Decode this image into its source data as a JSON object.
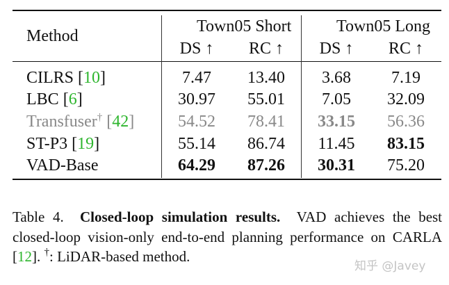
{
  "table": {
    "header": {
      "method": "Method",
      "groups": [
        "Town05 Short",
        "Town05 Long"
      ],
      "columns": [
        "DS ↑",
        "RC ↑",
        "DS ↑",
        "RC ↑"
      ]
    },
    "rows": [
      {
        "method": {
          "name": "CILRS",
          "ref_open": "[",
          "ref": "10",
          "ref_close": "]"
        },
        "cells": [
          "7.47",
          "13.40",
          "3.68",
          "7.19"
        ],
        "bold": [
          false,
          false,
          false,
          false
        ],
        "muted": false
      },
      {
        "method": {
          "name": "LBC",
          "ref_open": "[",
          "ref": "6",
          "ref_close": "]"
        },
        "cells": [
          "30.97",
          "55.01",
          "7.05",
          "32.09"
        ],
        "bold": [
          false,
          false,
          false,
          false
        ],
        "muted": false
      },
      {
        "method": {
          "name": "Transfuser",
          "mark": "†",
          "ref_open": "[",
          "ref": "42",
          "ref_close": "]"
        },
        "cells": [
          "54.52",
          "78.41",
          "33.15",
          "56.36"
        ],
        "bold": [
          false,
          false,
          true,
          false
        ],
        "muted": true
      },
      {
        "method": {
          "name": "ST-P3",
          "ref_open": "[",
          "ref": "19",
          "ref_close": "]"
        },
        "cells": [
          "55.14",
          "86.74",
          "11.45",
          "83.15"
        ],
        "bold": [
          false,
          false,
          false,
          true
        ],
        "muted": false
      },
      {
        "method": {
          "name": "VAD-Base"
        },
        "cells": [
          "64.29",
          "87.26",
          "30.31",
          "75.20"
        ],
        "bold": [
          true,
          true,
          true,
          false
        ],
        "muted": false
      }
    ]
  },
  "caption": {
    "label": "Table 4.",
    "heading": "Closed-loop simulation results.",
    "text": "VAD achieves the best closed-loop vision-only end-to-end planning performance on CARLA ",
    "ref_open": "[",
    "ref": "12",
    "ref_close": "].",
    "mark": "†",
    "note": ": LiDAR-based method."
  },
  "watermark": "知乎 @Javey"
}
